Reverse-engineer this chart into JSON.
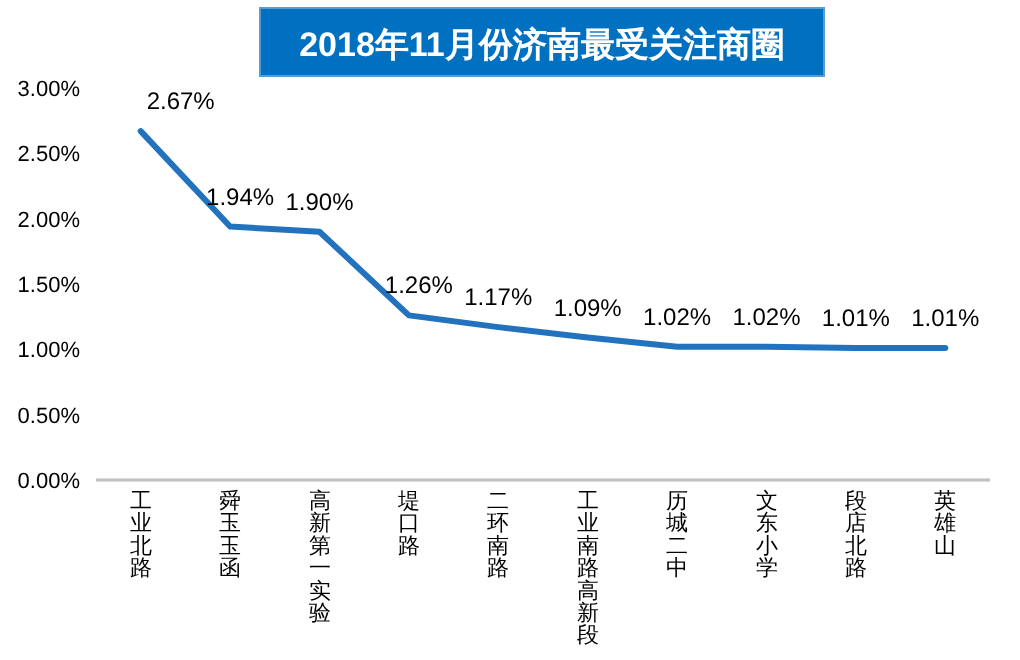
{
  "chart_data": {
    "type": "line",
    "title": "2018年11月份济南最受关注商圈",
    "categories": [
      "工业北路",
      "舜玉玉函",
      "高新第一实验",
      "堤口路",
      "二环南路",
      "工业南路高新段",
      "历城二中",
      "文东小学",
      "段店北路",
      "英雄山"
    ],
    "values": [
      2.67,
      1.94,
      1.9,
      1.26,
      1.17,
      1.09,
      1.02,
      1.02,
      1.01,
      1.01
    ],
    "value_labels": [
      "2.67%",
      "1.94%",
      "1.90%",
      "1.26%",
      "1.17%",
      "1.09%",
      "1.02%",
      "1.02%",
      "1.01%",
      "1.01%"
    ],
    "color": "#2372be",
    "ylim": [
      0,
      3
    ],
    "yticks": [
      {
        "value": 0,
        "label": "0.00%"
      },
      {
        "value": 0.5,
        "label": "0.50%"
      },
      {
        "value": 1,
        "label": "1.00%"
      },
      {
        "value": 1.5,
        "label": "1.50%"
      },
      {
        "value": 2,
        "label": "2.00%"
      },
      {
        "value": 2.5,
        "label": "2.50%"
      },
      {
        "value": 3,
        "label": "3.00%"
      }
    ],
    "grid": false,
    "marker": "none"
  }
}
